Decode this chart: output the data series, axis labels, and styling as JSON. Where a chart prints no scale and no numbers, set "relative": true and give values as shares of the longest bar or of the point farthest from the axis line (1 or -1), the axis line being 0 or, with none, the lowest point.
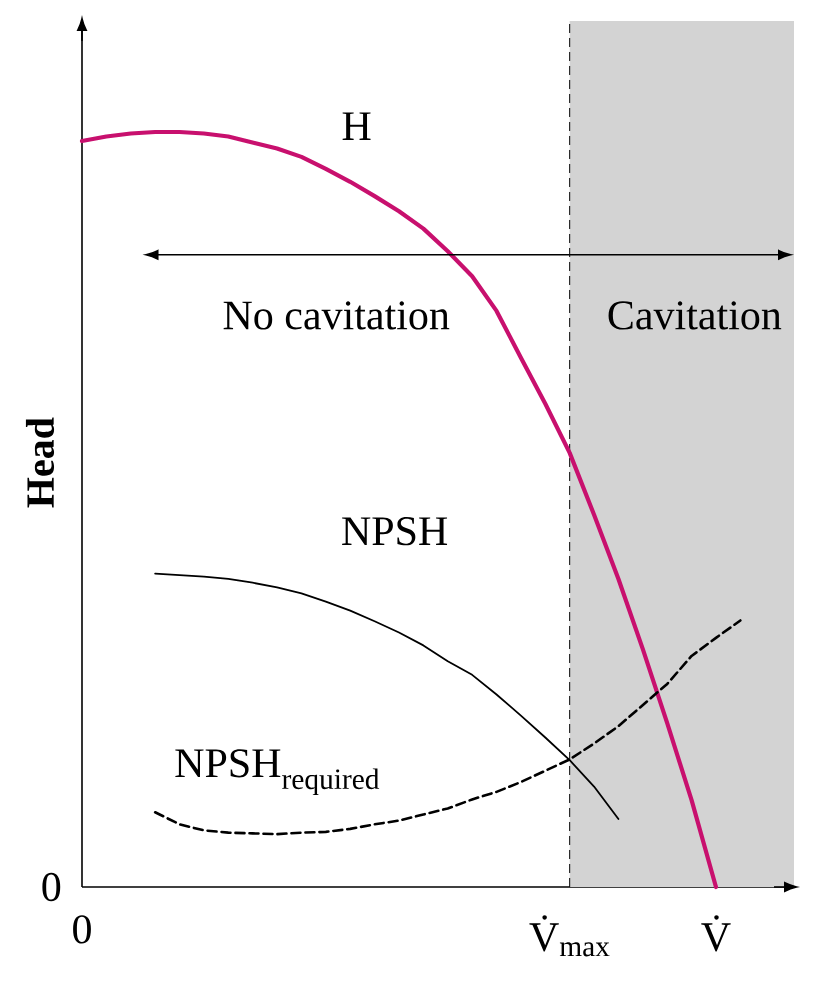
{
  "chart_data": {
    "type": "line",
    "relative": true,
    "ylabel": "Head",
    "categories": [
      "0",
      null,
      null,
      null,
      null,
      null,
      null,
      null,
      null,
      null,
      null,
      null,
      null,
      null,
      null,
      null,
      null,
      null,
      null,
      null,
      "V̇$_{max}$",
      null,
      null,
      null,
      null,
      null,
      "V̇",
      null,
      null,
      null
    ],
    "series": [
      {
        "name": "H",
        "color": "#c8106e",
        "values": [
          0.988,
          0.994,
          0.998,
          1.0,
          1.0,
          0.998,
          0.994,
          0.986,
          0.978,
          0.967,
          0.951,
          0.934,
          0.915,
          0.895,
          0.872,
          0.842,
          0.809,
          0.763,
          0.701,
          0.64,
          0.575,
          0.493,
          0.408,
          0.315,
          0.217,
          0.115,
          0,
          null,
          null,
          null
        ]
      },
      {
        "name": "NPSH",
        "color": "#000000",
        "values": [
          null,
          null,
          null,
          0.415,
          0.413,
          0.411,
          0.408,
          0.403,
          0.397,
          0.389,
          0.378,
          0.366,
          0.352,
          0.337,
          0.32,
          0.299,
          0.281,
          0.255,
          0.227,
          0.198,
          0.168,
          0.133,
          0.09,
          null,
          null,
          null,
          null,
          null,
          null,
          null
        ]
      },
      {
        "name": "NPSH$_{required}$",
        "color": "#000000",
        "line_style": "dashed",
        "values": [
          null,
          null,
          null,
          0.099,
          0.083,
          0.075,
          0.072,
          0.071,
          0.07,
          0.072,
          0.073,
          0.077,
          0.083,
          0.088,
          0.096,
          0.104,
          0.116,
          0.126,
          0.139,
          0.154,
          0.169,
          0.19,
          0.213,
          0.241,
          0.269,
          0.306,
          0.33,
          0.353,
          null,
          null
        ]
      }
    ],
    "ref_lines": [
      {
        "axis": "x",
        "value": "V̇$_{max}$",
        "line_style": "dashed",
        "color": "#000000"
      }
    ],
    "annotations": [
      "No cavitation",
      "Cavitation",
      "0"
    ]
  }
}
